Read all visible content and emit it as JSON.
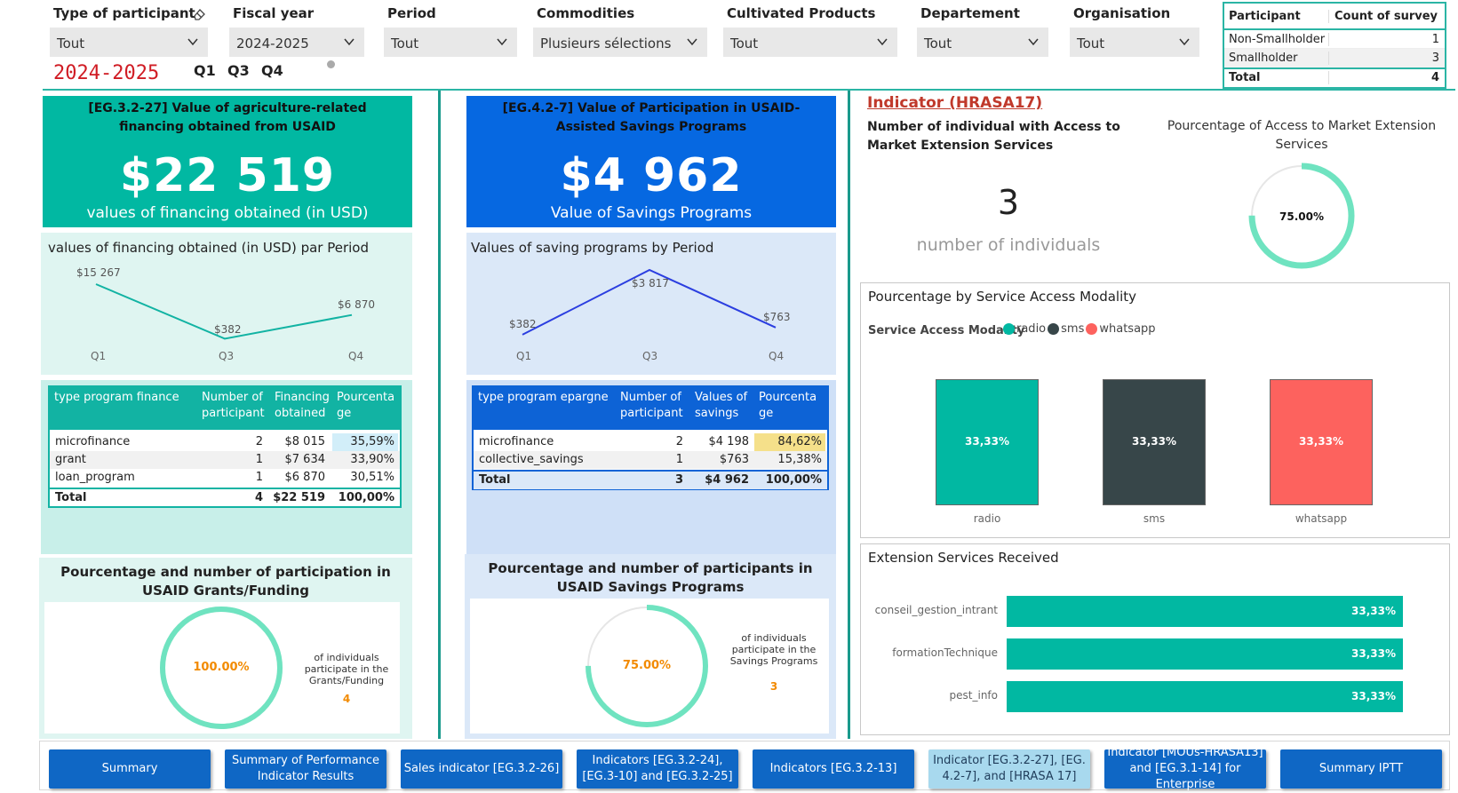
{
  "filters": {
    "participant_type": {
      "label": "Type of participant",
      "value": "Tout"
    },
    "fiscal_year": {
      "label": "Fiscal year",
      "value": "2024-2025"
    },
    "period": {
      "label": "Period",
      "value": "Tout"
    },
    "commodities": {
      "label": "Commodities",
      "value": "Plusieurs sélections"
    },
    "cultivated_products": {
      "label": "Cultivated Products",
      "value": "Tout"
    },
    "departement": {
      "label": "Departement",
      "value": "Tout"
    },
    "organisation": {
      "label": "Organisation",
      "value": "Tout"
    }
  },
  "year_display": "2024-2025",
  "quarters": [
    "Q1",
    "Q3",
    "Q4"
  ],
  "survey_table": {
    "headers": [
      "Participant",
      "Count of survey"
    ],
    "rows": [
      {
        "name": "Non-Smallholder",
        "count": "1"
      },
      {
        "name": "Smallholder",
        "count": "3"
      }
    ],
    "total_label": "Total",
    "total": "4"
  },
  "financing_card": {
    "title": "[EG.3.2-27] Value of agriculture-related financing obtained from USAID",
    "value": "$22 519",
    "subtitle": "values of financing obtained (in USD)",
    "color": "#01b8a2"
  },
  "savings_card": {
    "title": "[EG.4.2-7] Value of Participation in USAID-Assisted Savings Programs",
    "value": "$4 962",
    "subtitle": "Value of Savings Programs",
    "color": "#0668e1"
  },
  "financing_line": {
    "title": "values of financing obtained (in USD) par Period",
    "labels": [
      "$15 267",
      "$382",
      "$6 870"
    ]
  },
  "savings_line": {
    "title": "Values of saving programs by Period",
    "labels": [
      "$382",
      "$3 817",
      "$763"
    ]
  },
  "finance_table": {
    "headers": [
      "type program finance",
      "Number of participant",
      "Financing obtained",
      "Pourcentage"
    ],
    "rows": [
      [
        "microfinance",
        "2",
        "$8 015",
        "35,59%"
      ],
      [
        "grant",
        "1",
        "$7 634",
        "33,90%"
      ],
      [
        "loan_program",
        "1",
        "$6 870",
        "30,51%"
      ]
    ],
    "total": [
      "Total",
      "4",
      "$22 519",
      "100,00%"
    ]
  },
  "savings_table": {
    "headers": [
      "type program epargne",
      "Number of participant",
      "Values of savings",
      "Pourcentage"
    ],
    "rows": [
      [
        "microfinance",
        "2",
        "$4 198",
        "84,62%"
      ],
      [
        "collective_savings",
        "1",
        "$763",
        "15,38%"
      ]
    ],
    "total": [
      "Total",
      "3",
      "$4 962",
      "100,00%"
    ]
  },
  "grants_gauge": {
    "title": "Pourcentage and number of participation in USAID Grants/Funding",
    "value_label": "100.00%",
    "fraction": 1.0,
    "caption": "of individuals participate in the Grants/Funding",
    "count": "4"
  },
  "savings_gauge": {
    "title": "Pourcentage and number of participants in USAID Savings Programs",
    "value_label": "75.00%",
    "fraction": 0.75,
    "caption": "of individuals participate in the Savings Programs",
    "count": "3"
  },
  "hrasa": {
    "link": "Indicator (HRASA17)",
    "subtitle": "Number of individual with Access to Market Extension Services",
    "count": "3",
    "count_caption": "number of individuals",
    "gauge_title": "Pourcentage of Access to Market Extension Services",
    "gauge_value": "75.00%",
    "gauge_fraction": 0.75
  },
  "modality_chart": {
    "title": "Pourcentage by Service Access Modality",
    "legend_title": "Service Access Modality",
    "legend": [
      "radio",
      "sms",
      "whatsapp"
    ],
    "colors": [
      "#01b8a2",
      "#374649",
      "#fd625e"
    ]
  },
  "extension_chart": {
    "title": "Extension Services Received"
  },
  "chart_data": [
    {
      "type": "line",
      "categories": [
        "Q1",
        "Q3",
        "Q4"
      ],
      "values": [
        15267,
        382,
        6870
      ]
    },
    {
      "type": "line",
      "categories": [
        "Q1",
        "Q3",
        "Q4"
      ],
      "values": [
        382,
        3817,
        763
      ]
    },
    {
      "type": "bar",
      "categories": [
        "radio",
        "sms",
        "whatsapp"
      ],
      "values": [
        33.33,
        33.33,
        33.33
      ],
      "value_labels": [
        "33,33%",
        "33,33%",
        "33,33%"
      ]
    },
    {
      "type": "bar",
      "orientation": "horizontal",
      "categories": [
        "conseil_gestion_intrant",
        "formationTechnique",
        "pest_info"
      ],
      "values": [
        33.33,
        33.33,
        33.33
      ],
      "value_labels": [
        "33,33%",
        "33,33%",
        "33,33%"
      ]
    }
  ],
  "nav": [
    "Summary",
    "Summary of Performance Indicator Results",
    "Sales indicator [EG.3.2-26]",
    "Indicators [EG.3.2-24],[EG.3-10] and [EG.3.2-25]",
    "Indicators [EG.3.2-13]",
    "Indicator [EG.3.2-27], [EG. 4.2-7], and [HRASA 17]",
    "Indicator [MOUs-HRASA13] and [EG.3.1-14] for Enterprise",
    "Summary IPTT"
  ]
}
